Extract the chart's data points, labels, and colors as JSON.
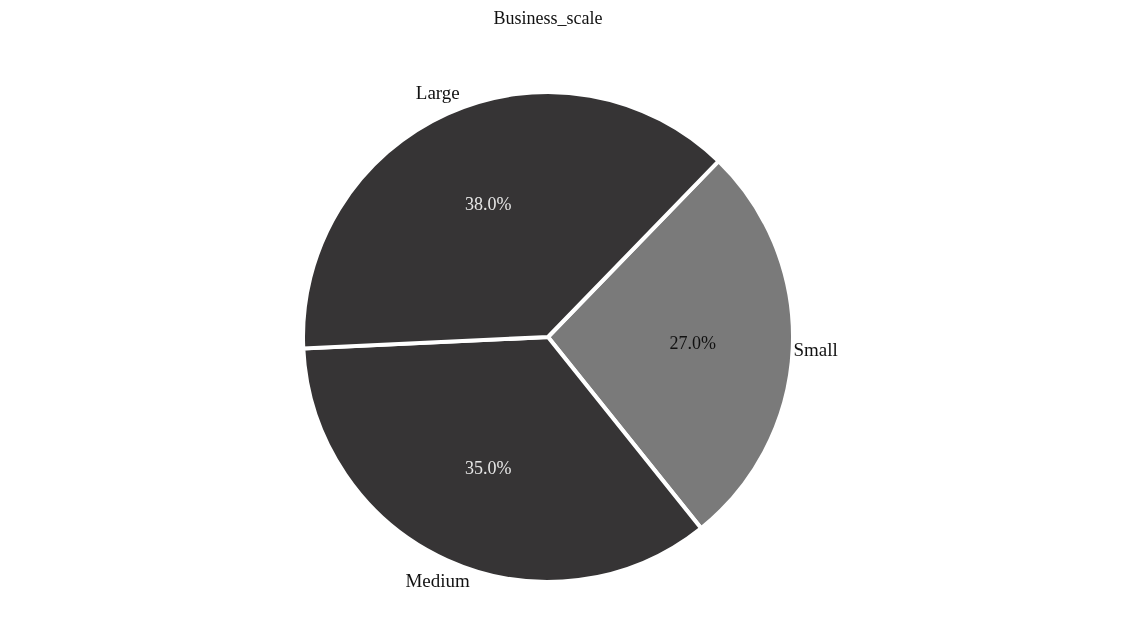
{
  "chart_data": {
    "type": "pie",
    "title": "Business_scale",
    "categories": [
      "Small",
      "Medium",
      "Large"
    ],
    "values": [
      27,
      35,
      38
    ],
    "value_labels": [
      "27.0%",
      "35.0%",
      "38.0%"
    ],
    "colors": [
      "#7a7a7a",
      "#363435",
      "#363435"
    ]
  }
}
